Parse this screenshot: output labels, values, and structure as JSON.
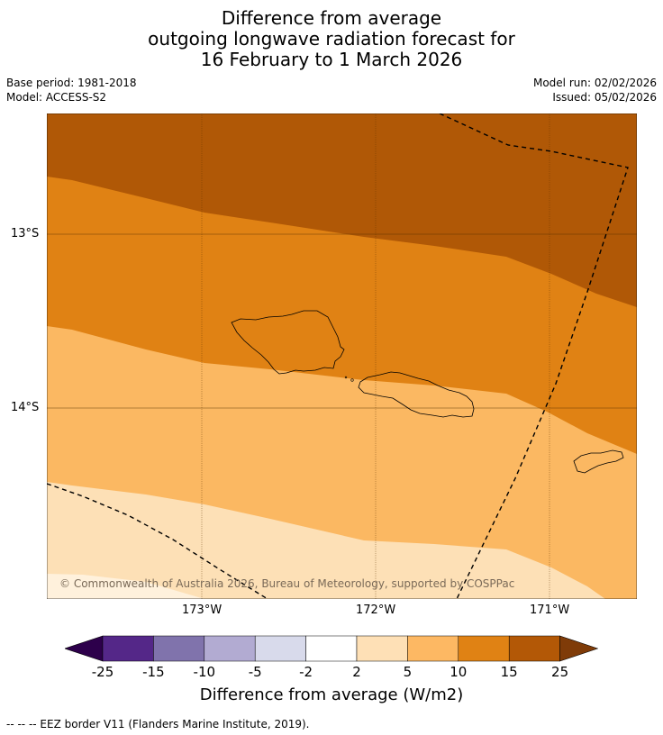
{
  "title": {
    "line1": "Difference from average",
    "line2": "outgoing longwave radiation forecast for",
    "line3": "16 February to 1 March 2026"
  },
  "meta": {
    "base_period": "Base period: 1981-2018",
    "model": "Model: ACCESS-S2",
    "model_run": "Model run: 02/02/2026",
    "issued": "Issued: 05/02/2026"
  },
  "map": {
    "lat_labels": [
      "13°S",
      "14°S"
    ],
    "lon_labels": [
      "173°W",
      "172°W",
      "171°W"
    ],
    "copyright": "© Commonwealth of Australia 2026, Bureau of Meteorology, supported by COSPPac",
    "colors": {
      "dark_orange": "#b05806",
      "orange": "#e08214",
      "light_orange": "#fbb862",
      "pale": "#fde0b6"
    }
  },
  "colorbar": {
    "title": "Difference from average (W/m2)",
    "tick_labels": [
      "-25",
      "-15",
      "-10",
      "-5",
      "-2",
      "2",
      "5",
      "10",
      "15",
      "25"
    ],
    "colors": [
      "#2d004b",
      "#542788",
      "#8073ac",
      "#b2abd2",
      "#d8daeb",
      "#ffffff",
      "#fee0b6",
      "#fdb863",
      "#e08214",
      "#b35806",
      "#7f3b08"
    ]
  },
  "footnote": "--  --  -- EEZ border V11 (Flanders Marine Institute, 2019)."
}
